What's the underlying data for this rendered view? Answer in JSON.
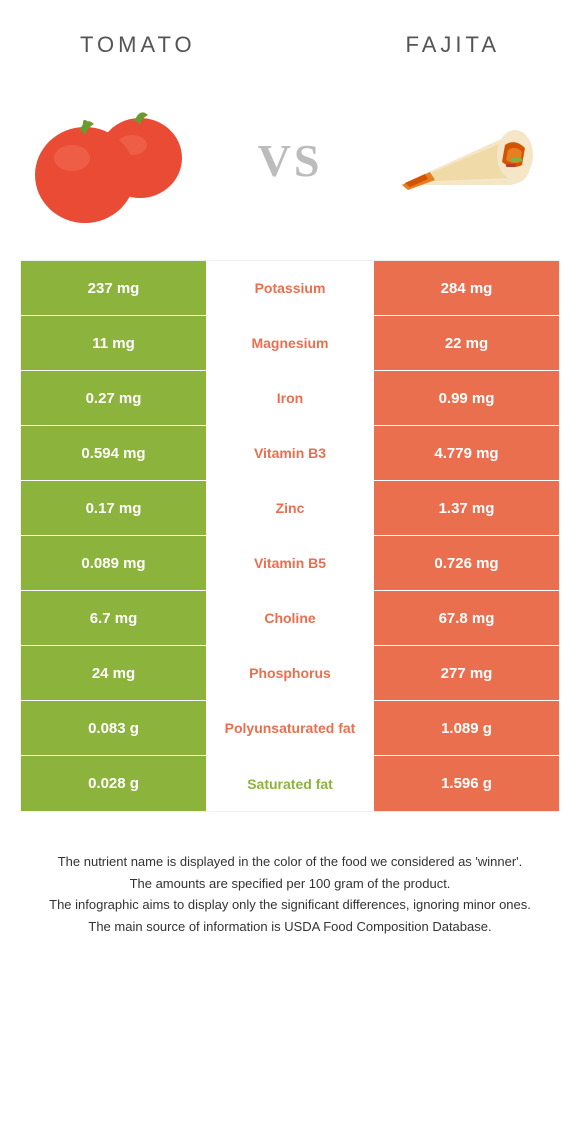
{
  "colors": {
    "left": "#8cb33c",
    "right": "#e96f4f",
    "vs": "#bdbcbc",
    "tomato_red": "#e94b35",
    "tomato_green": "#6b9b2f",
    "fajita_tortilla": "#f5e6c8",
    "fajita_fill1": "#e67e22",
    "fajita_fill2": "#d35400",
    "fajita_green": "#7cb342"
  },
  "header": {
    "left_title": "TOMATO",
    "right_title": "FAJITA",
    "vs": "VS"
  },
  "rows": [
    {
      "left": "237 mg",
      "label": "Potassium",
      "right": "284 mg",
      "winner": "right"
    },
    {
      "left": "11 mg",
      "label": "Magnesium",
      "right": "22 mg",
      "winner": "right"
    },
    {
      "left": "0.27 mg",
      "label": "Iron",
      "right": "0.99 mg",
      "winner": "right"
    },
    {
      "left": "0.594 mg",
      "label": "Vitamin B3",
      "right": "4.779 mg",
      "winner": "right"
    },
    {
      "left": "0.17 mg",
      "label": "Zinc",
      "right": "1.37 mg",
      "winner": "right"
    },
    {
      "left": "0.089 mg",
      "label": "Vitamin B5",
      "right": "0.726 mg",
      "winner": "right"
    },
    {
      "left": "6.7 mg",
      "label": "Choline",
      "right": "67.8 mg",
      "winner": "right"
    },
    {
      "left": "24 mg",
      "label": "Phosphorus",
      "right": "277 mg",
      "winner": "right"
    },
    {
      "left": "0.083 g",
      "label": "Polyunsaturated fat",
      "right": "1.089 g",
      "winner": "right"
    },
    {
      "left": "0.028 g",
      "label": "Saturated fat",
      "right": "1.596 g",
      "winner": "left"
    }
  ],
  "footnotes": [
    "The nutrient name is displayed in the color of the food we considered as 'winner'.",
    "The amounts are specified per 100 gram of the product.",
    "The infographic aims to display only the significant differences, ignoring minor ones.",
    "The main source of information is USDA Food Composition Database."
  ]
}
